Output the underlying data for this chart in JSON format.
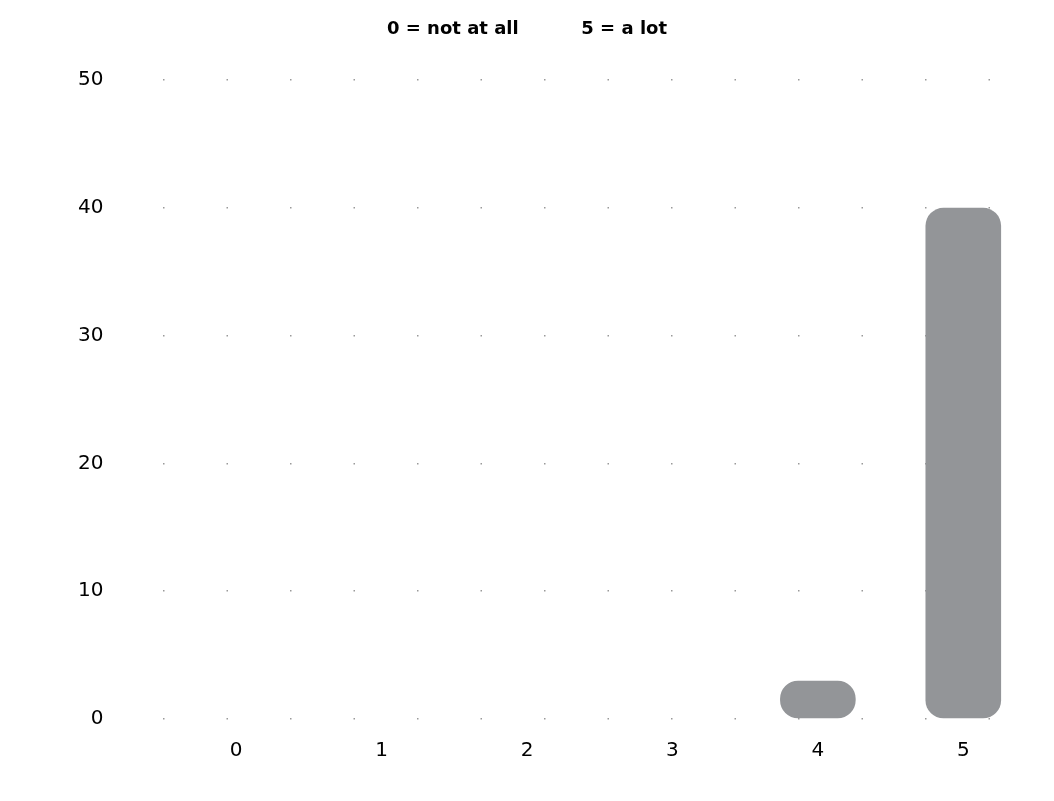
{
  "chart_data": {
    "type": "bar",
    "title": "0 = not at all          5 = a lot",
    "categories": [
      "0",
      "1",
      "2",
      "3",
      "4",
      "5"
    ],
    "values": [
      0,
      0,
      0,
      0,
      3,
      40
    ],
    "color": "#939598",
    "ylim": [
      0,
      50
    ],
    "yticks": [
      0,
      10,
      20,
      30,
      40,
      50
    ],
    "grid": "y",
    "legend": false
  }
}
